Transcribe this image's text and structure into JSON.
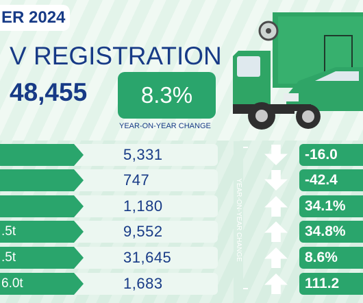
{
  "header": {
    "period_label": "ER 2024",
    "headline": "V REGISTRATIONS",
    "total": "48,455",
    "yoy_value": "8.3%",
    "yoy_caption": "YEAR-ON-YEAR CHANGE"
  },
  "illustration": {
    "subject": "green box truck and green pickup",
    "colors": {
      "truck": "#2fa565",
      "pickup": "#2fa567",
      "wheel": "#2f2f2f"
    }
  },
  "side_caption": "YEAR-ON-YEAR CHANGE",
  "rows": [
    {
      "label": "",
      "count": "5,331",
      "direction": "down",
      "change": "-16.0"
    },
    {
      "label": "",
      "count": "747",
      "direction": "down",
      "change": "-42.4"
    },
    {
      "label": "",
      "count": "1,180",
      "direction": "up",
      "change": "34.1%"
    },
    {
      "label": ".5t",
      "count": "9,552",
      "direction": "up",
      "change": "34.8%"
    },
    {
      "label": ".5t",
      "count": "31,645",
      "direction": "up",
      "change": "8.6%"
    },
    {
      "label": "6.0t",
      "count": "1,683",
      "direction": "up",
      "change": "111.2"
    }
  ],
  "colors": {
    "navy": "#173a86",
    "green": "#2aa56c",
    "panel": "#ecf7f1"
  }
}
